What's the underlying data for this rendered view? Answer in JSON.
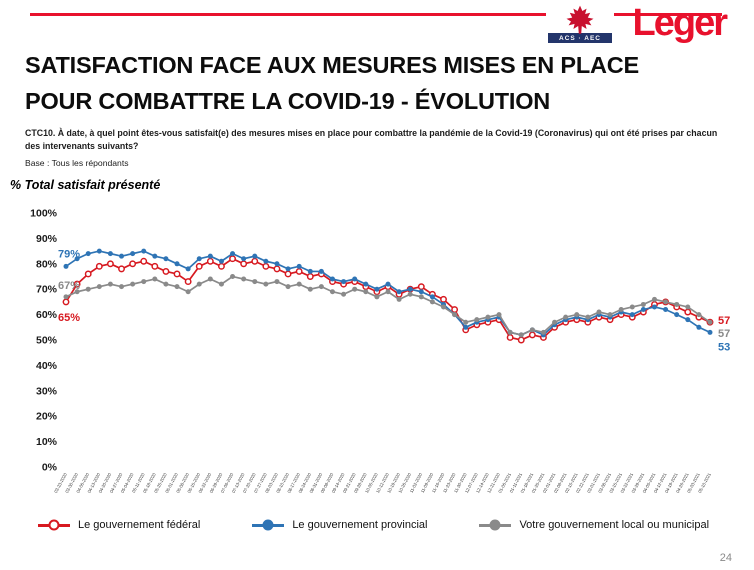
{
  "header": {
    "brand": "Leger",
    "badge_text": "ACS · AEC",
    "accent_color": "#e8112d"
  },
  "title": {
    "line1": "SATISFACTION FACE AUX MESURES MISES EN PLACE",
    "line2": "POUR COMBATTRE LA COVID-19 - ÉVOLUTION"
  },
  "question": "CTC10. À date, à quel point êtes-vous satisfait(e) des mesures mises en place pour combattre la pandémie de la Covid-19 (Coronavirus) qui ont été prises par chacun des intervenants suivants?",
  "base": "Base : Tous les répondants",
  "metric_note": "% Total satisfait présenté",
  "page_number": "24",
  "chart_data": {
    "type": "line",
    "title": "Satisfaction face aux mesures mises en place pour combattre la COVID-19 - évolution",
    "ylabel": "% Total satisfait",
    "ylim": [
      0,
      100
    ],
    "yticks": [
      "0%",
      "10%",
      "20%",
      "30%",
      "40%",
      "50%",
      "60%",
      "70%",
      "80%",
      "90%",
      "100%"
    ],
    "grid": false,
    "legend_position": "bottom",
    "x": [
      "03-23-2020",
      "03-30-2020",
      "04-06-2020",
      "04-13-2020",
      "04-20-2020",
      "04-27-2020",
      "05-04-2020",
      "05-11-2020",
      "05-18-2020",
      "05-25-2020",
      "06-01-2020",
      "06-08-2020",
      "06-15-2020",
      "06-22-2020",
      "06-29-2020",
      "07-06-2020",
      "07-13-2020",
      "07-20-2020",
      "07-27-2020",
      "08-03-2020",
      "08-10-2020",
      "08-17-2020",
      "08-24-2020",
      "08-31-2020",
      "09-08-2020",
      "09-14-2020",
      "09-21-2020",
      "09-28-2020",
      "10-05-2020",
      "10-12-2020",
      "10-19-2020",
      "10-26-2020",
      "11-02-2020",
      "11-09-2020",
      "11-16-2020",
      "11-23-2020",
      "11-30-2020",
      "12-07-2020",
      "12-14-2020",
      "12-21-2020",
      "01-06-2021",
      "01-11-2021",
      "01-18-2021",
      "01-25-2021",
      "02-01-2021",
      "02-08-2021",
      "02-15-2021",
      "02-22-2021",
      "03-01-2021",
      "03-08-2021",
      "03-15-2021",
      "03-22-2021",
      "03-29-2021",
      "04-05-2021",
      "04-12-2021",
      "04-19-2021",
      "04-26-2021",
      "05-03-2021",
      "05-10-2021"
    ],
    "series": [
      {
        "name": "Le gouvernement fédéral",
        "color": "#d71920",
        "marker": "open-circle",
        "values": [
          65,
          72,
          76,
          79,
          80,
          78,
          80,
          81,
          79,
          77,
          76,
          73,
          79,
          81,
          79,
          82,
          80,
          81,
          79,
          78,
          76,
          77,
          75,
          76,
          73,
          72,
          73,
          71,
          69,
          71,
          68,
          70,
          71,
          68,
          66,
          62,
          54,
          56,
          57,
          58,
          51,
          50,
          52,
          51,
          55,
          57,
          58,
          57,
          59,
          58,
          60,
          59,
          61,
          64,
          65,
          63,
          61,
          59,
          57
        ]
      },
      {
        "name": "Le gouvernement provincial",
        "color": "#2e74b5",
        "marker": "filled-circle",
        "values": [
          79,
          82,
          84,
          85,
          84,
          83,
          84,
          85,
          83,
          82,
          80,
          78,
          82,
          83,
          81,
          84,
          82,
          83,
          81,
          80,
          78,
          79,
          77,
          77,
          74,
          73,
          74,
          72,
          70,
          72,
          69,
          70,
          69,
          67,
          64,
          60,
          55,
          57,
          58,
          59,
          53,
          52,
          54,
          52,
          56,
          58,
          59,
          58,
          60,
          59,
          61,
          60,
          62,
          63,
          62,
          60,
          58,
          55,
          53
        ]
      },
      {
        "name": "Votre gouvernement local ou municipal",
        "color": "#8a8a8a",
        "marker": "filled-circle",
        "values": [
          67,
          69,
          70,
          71,
          72,
          71,
          72,
          73,
          74,
          72,
          71,
          69,
          72,
          74,
          72,
          75,
          74,
          73,
          72,
          73,
          71,
          72,
          70,
          71,
          69,
          68,
          70,
          69,
          67,
          69,
          66,
          68,
          67,
          65,
          63,
          60,
          57,
          58,
          59,
          60,
          53,
          52,
          54,
          53,
          57,
          59,
          60,
          59,
          61,
          60,
          62,
          63,
          64,
          66,
          65,
          64,
          63,
          60,
          57
        ]
      }
    ],
    "annotations": [
      {
        "series_index": 0,
        "pos": "start",
        "text": "65%"
      },
      {
        "series_index": 1,
        "pos": "start",
        "text": "79%"
      },
      {
        "series_index": 2,
        "pos": "start",
        "text": "67%"
      },
      {
        "series_index": 0,
        "pos": "end",
        "text": "57%"
      },
      {
        "series_index": 1,
        "pos": "end",
        "text": "53%"
      },
      {
        "series_index": 2,
        "pos": "end",
        "text": "57%"
      }
    ]
  }
}
